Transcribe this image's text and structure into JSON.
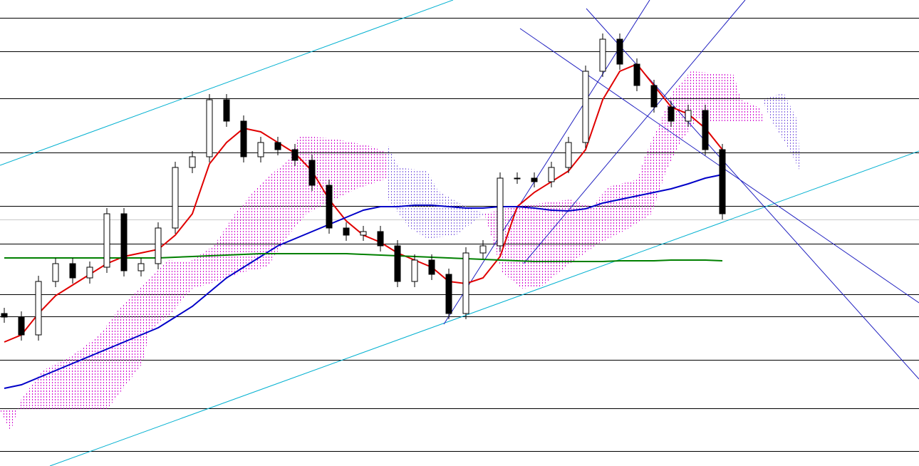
{
  "chart_data": {
    "type": "candlestick",
    "color": "#000000",
    "ylim": [
      0,
      654
    ],
    "open": [
      214,
      209,
      184,
      259,
      284,
      264,
      279,
      354,
      274,
      284,
      334,
      419,
      434,
      514,
      484,
      434,
      454,
      444,
      429,
      394,
      334,
      324,
      329,
      309,
      259,
      289,
      269,
      214,
      299,
      309,
      404,
      404,
      399,
      419,
      454,
      554,
      599,
      564,
      534,
      504,
      484,
      499,
      444
    ],
    "high": [
      222,
      217,
      267,
      292,
      292,
      287,
      362,
      362,
      292,
      342,
      427,
      442,
      522,
      522,
      492,
      462,
      462,
      452,
      437,
      402,
      342,
      337,
      337,
      317,
      297,
      297,
      277,
      307,
      317,
      412,
      412,
      412,
      427,
      462,
      562,
      607,
      607,
      572,
      542,
      512,
      507,
      507,
      452
    ],
    "low": [
      201,
      176,
      176,
      251,
      256,
      256,
      271,
      266,
      266,
      276,
      326,
      411,
      426,
      476,
      426,
      426,
      436,
      421,
      386,
      326,
      316,
      316,
      301,
      251,
      251,
      261,
      206,
      206,
      291,
      301,
      396,
      391,
      391,
      411,
      446,
      546,
      556,
      526,
      496,
      476,
      476,
      436,
      346
    ],
    "close": [
      209,
      184,
      259,
      284,
      264,
      279,
      354,
      274,
      284,
      334,
      419,
      434,
      514,
      484,
      434,
      454,
      444,
      429,
      394,
      334,
      324,
      329,
      309,
      259,
      289,
      269,
      214,
      299,
      309,
      404,
      404,
      399,
      419,
      454,
      554,
      599,
      564,
      534,
      504,
      484,
      499,
      444,
      354
    ],
    "series": [
      {
        "color": "#e00000",
        "values": [
          174,
          184,
          214,
          239,
          254,
          269,
          284,
          294,
          299,
          304,
          324,
          354,
          424,
          454,
          474,
          469,
          454,
          439,
          414,
          374,
          344,
          324,
          314,
          299,
          289,
          279,
          259,
          256,
          264,
          294,
          364,
          384,
          399,
          414,
          444,
          514,
          554,
          564,
          534,
          504,
          494,
          474,
          444
        ]
      },
      {
        "color": "#0000c8",
        "values": [
          109,
          114,
          124,
          134,
          144,
          154,
          164,
          174,
          184,
          194,
          209,
          224,
          244,
          264,
          279,
          294,
          309,
          319,
          329,
          339,
          349,
          359,
          364,
          364,
          366,
          366,
          364,
          362,
          362,
          364,
          364,
          362,
          359,
          358,
          361,
          369,
          374,
          379,
          384,
          389,
          396,
          404,
          409
        ]
      },
      {
        "color": "#008000",
        "values": [
          292,
          292,
          292,
          292,
          292,
          292,
          292,
          292,
          292,
          292,
          293,
          294,
          295,
          296,
          297,
          298,
          298,
          298,
          298,
          298,
          298,
          297,
          296,
          295,
          294,
          293,
          292,
          291,
          290,
          289,
          288,
          287,
          287,
          287,
          287,
          287,
          288,
          288,
          288,
          289,
          289,
          289,
          288
        ]
      }
    ]
  }
}
